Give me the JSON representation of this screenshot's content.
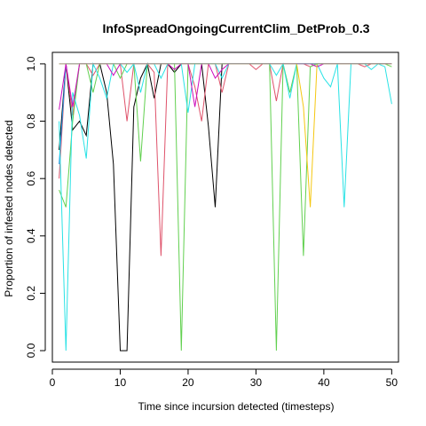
{
  "chart_data": {
    "type": "line",
    "title": "InfoSpreadOngoingCurrentClim_DetProb_0.3",
    "xlabel": "Time since incursion detected (timesteps)",
    "ylabel": "Proportion of infested nodes detected",
    "xlim": [
      0,
      51
    ],
    "ylim": [
      -0.04,
      1.04
    ],
    "xticks": [
      0,
      10,
      20,
      30,
      40,
      50
    ],
    "yticks": [
      0.0,
      0.2,
      0.4,
      0.6,
      0.8,
      1.0
    ],
    "xtick_labels": [
      "0",
      "10",
      "20",
      "30",
      "40",
      "50"
    ],
    "ytick_labels": [
      "0.0",
      "0.2",
      "0.4",
      "0.6",
      "0.8",
      "1.0"
    ],
    "grid": false,
    "legend": "none",
    "series": [
      {
        "color": "#000000",
        "x": [
          1,
          2,
          3,
          4,
          5,
          6,
          7,
          8,
          9,
          10,
          11,
          12,
          13,
          14,
          15,
          16,
          17,
          18,
          19,
          20,
          21,
          22,
          23,
          24,
          25,
          26,
          27,
          28,
          29,
          30,
          31,
          32,
          33,
          34,
          35,
          36,
          37,
          38,
          39,
          40,
          41,
          42,
          43,
          44,
          45,
          46,
          47,
          48,
          49,
          50
        ],
        "y": [
          0.7,
          1.0,
          0.77,
          0.8,
          0.75,
          1.0,
          1.0,
          0.9,
          0.65,
          0.0,
          0.0,
          0.85,
          0.95,
          1.0,
          0.88,
          1.0,
          1.0,
          0.97,
          1.0,
          1.0,
          1.0,
          1.0,
          0.78,
          0.5,
          1.0,
          1.0,
          1.0,
          1.0,
          1.0,
          1.0,
          1.0,
          1.0,
          1.0,
          1.0,
          1.0,
          1.0,
          1.0,
          1.0,
          1.0,
          1.0,
          1.0,
          1.0,
          1.0,
          1.0,
          1.0,
          1.0,
          1.0,
          1.0,
          1.0,
          1.0
        ]
      },
      {
        "color": "#DF536B",
        "x": [
          1,
          2,
          3,
          4,
          5,
          6,
          7,
          8,
          9,
          10,
          11,
          12,
          13,
          14,
          15,
          16,
          17,
          18,
          19,
          20,
          21,
          22,
          23,
          24,
          25,
          26,
          27,
          28,
          29,
          30,
          31,
          32,
          33,
          34,
          35,
          36,
          37,
          38,
          39,
          40,
          41,
          42,
          43,
          44,
          45,
          46,
          47,
          48,
          49,
          50
        ],
        "y": [
          0.6,
          1.0,
          0.82,
          1.0,
          1.0,
          0.96,
          1.0,
          1.0,
          1.0,
          1.0,
          0.8,
          1.0,
          1.0,
          1.0,
          0.97,
          0.33,
          1.0,
          1.0,
          1.0,
          1.0,
          0.92,
          0.8,
          1.0,
          1.0,
          0.9,
          1.0,
          1.0,
          1.0,
          1.0,
          0.98,
          1.0,
          1.0,
          0.87,
          1.0,
          1.0,
          1.0,
          1.0,
          0.99,
          1.0,
          1.0,
          1.0,
          1.0,
          1.0,
          1.0,
          1.0,
          0.99,
          1.0,
          1.0,
          1.0,
          1.0
        ]
      },
      {
        "color": "#61D04F",
        "x": [
          1,
          2,
          3,
          4,
          5,
          6,
          7,
          8,
          9,
          10,
          11,
          12,
          13,
          14,
          15,
          16,
          17,
          18,
          19,
          20,
          21,
          22,
          23,
          24,
          25,
          26,
          27,
          28,
          29,
          30,
          31,
          32,
          33,
          34,
          35,
          36,
          37,
          38,
          39,
          40,
          41,
          42,
          43,
          44,
          45,
          46,
          47,
          48,
          49,
          50
        ],
        "y": [
          0.56,
          0.5,
          0.8,
          1.0,
          1.0,
          0.9,
          1.0,
          1.0,
          1.0,
          0.95,
          1.0,
          1.0,
          0.66,
          1.0,
          1.0,
          1.0,
          1.0,
          1.0,
          0.0,
          1.0,
          1.0,
          1.0,
          1.0,
          1.0,
          1.0,
          1.0,
          1.0,
          1.0,
          1.0,
          1.0,
          1.0,
          1.0,
          0.0,
          1.0,
          0.9,
          1.0,
          0.33,
          0.99,
          1.0,
          1.0,
          1.0,
          1.0,
          1.0,
          1.0,
          1.0,
          1.0,
          1.0,
          1.0,
          1.0,
          0.99
        ]
      },
      {
        "color": "#2297E6",
        "x": [
          1,
          2,
          3,
          4,
          5,
          6,
          7,
          8,
          9,
          10,
          11,
          12,
          13,
          14,
          15,
          16,
          17,
          18,
          19,
          20,
          21,
          22,
          23,
          24,
          25,
          26,
          27,
          28,
          29,
          30,
          31,
          32,
          33,
          34,
          35,
          36,
          37,
          38,
          39,
          40,
          41,
          42,
          43,
          44,
          45,
          46,
          47,
          48,
          49,
          50
        ],
        "y": [
          0.65,
          1.0,
          1.0,
          1.0,
          1.0,
          1.0,
          1.0,
          1.0,
          1.0,
          1.0,
          1.0,
          1.0,
          1.0,
          1.0,
          1.0,
          1.0,
          1.0,
          1.0,
          1.0,
          1.0,
          1.0,
          1.0,
          1.0,
          1.0,
          1.0,
          1.0,
          1.0,
          1.0,
          1.0,
          1.0,
          1.0,
          1.0,
          1.0,
          1.0,
          1.0,
          1.0,
          1.0,
          1.0,
          1.0,
          1.0,
          1.0,
          1.0,
          1.0,
          1.0,
          1.0,
          1.0,
          1.0,
          1.0,
          1.0,
          1.0
        ]
      },
      {
        "color": "#28E2E5",
        "x": [
          1,
          2,
          3,
          4,
          5,
          6,
          7,
          8,
          9,
          10,
          11,
          12,
          13,
          14,
          15,
          16,
          17,
          18,
          19,
          20,
          21,
          22,
          23,
          24,
          25,
          26,
          27,
          28,
          29,
          30,
          31,
          32,
          33,
          34,
          35,
          36,
          37,
          38,
          39,
          40,
          41,
          42,
          43,
          44,
          45,
          46,
          47,
          48,
          49,
          50
        ],
        "y": [
          0.8,
          0.0,
          0.9,
          0.82,
          0.67,
          1.0,
          0.95,
          0.88,
          1.0,
          1.0,
          0.97,
          1.0,
          0.9,
          1.0,
          1.0,
          0.95,
          1.0,
          1.0,
          1.0,
          0.83,
          1.0,
          1.0,
          1.0,
          1.0,
          0.95,
          1.0,
          1.0,
          1.0,
          1.0,
          1.0,
          1.0,
          1.0,
          0.96,
          1.0,
          0.88,
          1.0,
          1.0,
          1.0,
          1.0,
          0.95,
          0.92,
          1.0,
          0.5,
          1.0,
          1.0,
          1.0,
          0.98,
          1.0,
          0.99,
          0.86
        ]
      },
      {
        "color": "#CD0BBC",
        "x": [
          1,
          2,
          3,
          4,
          5,
          6,
          7,
          8,
          9,
          10,
          11,
          12,
          13,
          14,
          15,
          16,
          17,
          18,
          19,
          20,
          21,
          22,
          23,
          24,
          25,
          26,
          27,
          28,
          29,
          30,
          31,
          32,
          33,
          34,
          35,
          36,
          37,
          38,
          39,
          40,
          41,
          42,
          43,
          44,
          45,
          46,
          47,
          48,
          49,
          50
        ],
        "y": [
          0.84,
          1.0,
          0.85,
          1.0,
          1.0,
          1.0,
          1.0,
          1.0,
          0.96,
          1.0,
          1.0,
          1.0,
          1.0,
          1.0,
          1.0,
          1.0,
          1.0,
          0.98,
          1.0,
          1.0,
          0.85,
          1.0,
          1.0,
          0.95,
          0.98,
          1.0,
          1.0,
          1.0,
          1.0,
          1.0,
          1.0,
          1.0,
          1.0,
          1.0,
          1.0,
          1.0,
          1.0,
          1.0,
          0.99,
          1.0,
          1.0,
          1.0,
          1.0,
          1.0,
          1.0,
          1.0,
          1.0,
          1.0,
          1.0,
          1.0
        ]
      },
      {
        "color": "#F5C710",
        "x": [
          1,
          2,
          3,
          4,
          5,
          6,
          7,
          8,
          9,
          10,
          11,
          12,
          13,
          14,
          15,
          16,
          17,
          18,
          19,
          20,
          21,
          22,
          23,
          24,
          25,
          26,
          27,
          28,
          29,
          30,
          31,
          32,
          33,
          34,
          35,
          36,
          37,
          38,
          39,
          40,
          41,
          42,
          43,
          44,
          45,
          46,
          47,
          48,
          49,
          50
        ],
        "y": [
          1.0,
          1.0,
          1.0,
          1.0,
          1.0,
          1.0,
          1.0,
          1.0,
          1.0,
          1.0,
          1.0,
          1.0,
          1.0,
          1.0,
          1.0,
          1.0,
          1.0,
          1.0,
          1.0,
          1.0,
          1.0,
          1.0,
          1.0,
          1.0,
          1.0,
          1.0,
          1.0,
          1.0,
          1.0,
          1.0,
          1.0,
          1.0,
          1.0,
          1.0,
          1.0,
          1.0,
          0.85,
          0.5,
          1.0,
          1.0,
          1.0,
          1.0,
          1.0,
          1.0,
          1.0,
          1.0,
          1.0,
          1.0,
          1.0,
          1.0
        ]
      },
      {
        "color": "#9E9E9E",
        "x": [
          1,
          2,
          3,
          4,
          5,
          6,
          7,
          8,
          9,
          10,
          11,
          12,
          13,
          14,
          15,
          16,
          17,
          18,
          19,
          20,
          21,
          22,
          23,
          24,
          25,
          26,
          27,
          28,
          29,
          30,
          31,
          32,
          33,
          34,
          35,
          36,
          37,
          38,
          39,
          40,
          41,
          42,
          43,
          44,
          45,
          46,
          47,
          48,
          49,
          50
        ],
        "y": [
          1.0,
          1.0,
          1.0,
          1.0,
          1.0,
          1.0,
          1.0,
          1.0,
          1.0,
          1.0,
          1.0,
          1.0,
          1.0,
          1.0,
          1.0,
          1.0,
          1.0,
          1.0,
          1.0,
          1.0,
          1.0,
          1.0,
          1.0,
          1.0,
          1.0,
          1.0,
          1.0,
          1.0,
          1.0,
          1.0,
          1.0,
          1.0,
          1.0,
          1.0,
          1.0,
          1.0,
          1.0,
          1.0,
          1.0,
          1.0,
          1.0,
          1.0,
          1.0,
          1.0,
          1.0,
          1.0,
          1.0,
          1.0,
          1.0,
          1.0
        ]
      }
    ]
  }
}
